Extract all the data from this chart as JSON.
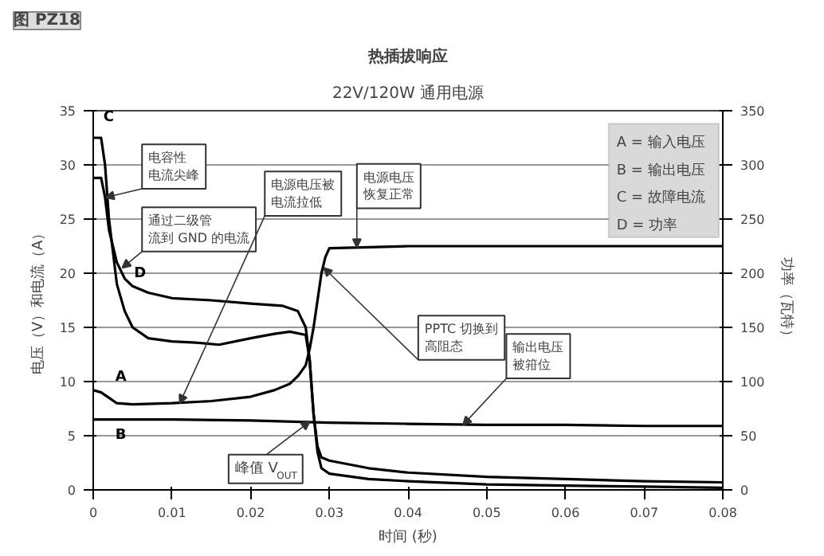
{
  "chart_data": {
    "type": "line",
    "title": "热插拔响应",
    "subtitle": "22V/120W 通用电源",
    "xlabel": "时间 (秒)",
    "ylabel": "电压（V）和电流（A）",
    "y2label": "功率（瓦特）",
    "xlim": [
      0,
      0.08
    ],
    "xticks": [
      0,
      0.01,
      0.02,
      0.03,
      0.04,
      0.05,
      0.06,
      0.07,
      0.08
    ],
    "ylim": [
      0,
      35
    ],
    "yticks": [
      0,
      5,
      10,
      15,
      20,
      25,
      30,
      35
    ],
    "y2lim": [
      0,
      350
    ],
    "y2ticks": [
      0,
      50,
      100,
      150,
      200,
      250,
      300,
      350
    ],
    "grid": "y",
    "line_style": "solid",
    "marker": "none",
    "series": [
      {
        "name": "A",
        "color": "#000000",
        "x": [
          0,
          0.001,
          0.002,
          0.003,
          0.005,
          0.01,
          0.015,
          0.02,
          0.023,
          0.025,
          0.026,
          0.027,
          0.0275,
          0.028,
          0.0285,
          0.029,
          0.0295,
          0.03,
          0.035,
          0.04,
          0.05,
          0.06,
          0.07,
          0.08
        ],
        "values": [
          9.2,
          9,
          8.5,
          8,
          7.9,
          8,
          8.2,
          8.6,
          9.2,
          9.8,
          10.5,
          11.5,
          13,
          15,
          17.5,
          20,
          21.5,
          22.3,
          22.4,
          22.5,
          22.5,
          22.5,
          22.5,
          22.5
        ]
      },
      {
        "name": "B",
        "color": "#000000",
        "x": [
          0,
          0.01,
          0.02,
          0.03,
          0.04,
          0.05,
          0.06,
          0.07,
          0.08
        ],
        "values": [
          6.5,
          6.5,
          6.4,
          6.2,
          6.1,
          6.0,
          6.0,
          5.9,
          5.9
        ]
      },
      {
        "name": "C",
        "color": "#000000",
        "x": [
          0,
          0.001,
          0.0015,
          0.002,
          0.003,
          0.004,
          0.005,
          0.007,
          0.01,
          0.013,
          0.016,
          0.02,
          0.023,
          0.025,
          0.027,
          0.0275,
          0.028,
          0.0285,
          0.029,
          0.03,
          0.035,
          0.04,
          0.05,
          0.06,
          0.07,
          0.08
        ],
        "values": [
          32.5,
          32.5,
          30,
          25,
          19,
          16.5,
          15,
          14,
          13.7,
          13.6,
          13.4,
          14,
          14.4,
          14.6,
          14.3,
          12,
          7,
          3.5,
          2,
          1.5,
          1,
          0.8,
          0.5,
          0.4,
          0.3,
          0.2
        ]
      },
      {
        "name": "D",
        "color": "#000000",
        "axis": "y2",
        "x": [
          0,
          0.001,
          0.0015,
          0.002,
          0.003,
          0.004,
          0.005,
          0.007,
          0.01,
          0.015,
          0.02,
          0.024,
          0.026,
          0.027,
          0.0275,
          0.028,
          0.0285,
          0.029,
          0.03,
          0.035,
          0.04,
          0.05,
          0.06,
          0.07,
          0.08
        ],
        "values": [
          288,
          288,
          270,
          240,
          210,
          195,
          188,
          182,
          177,
          175,
          172,
          170,
          165,
          150,
          120,
          70,
          40,
          30,
          27,
          20,
          16,
          12,
          10,
          8,
          7
        ]
      }
    ],
    "annotations": [
      "图 PZ18",
      {
        "text": "电容性电流尖峰",
        "x": 0.0016,
        "y": 27
      },
      {
        "text": "通过二级管流到 GND 的电流",
        "x": 0.0037,
        "y": 20.5
      },
      {
        "text": "电源电压被电流拉低",
        "x": 0.011,
        "y": 8
      },
      {
        "text": "电源电压恢复正常",
        "x": 0.0335,
        "y": 22.4
      },
      {
        "text": "PPTC 切换到高阻态",
        "x": 0.0293,
        "y": 20.5
      },
      {
        "text": "峰值 V$_{OUT}$",
        "x": 0.0275,
        "y": 6.3
      },
      {
        "text": "输出电压被箝位",
        "x": 0.047,
        "y": 6
      },
      "A = 输入电压",
      "B = 输出电压",
      "C = 故障电流",
      "D = 功率"
    ]
  }
}
